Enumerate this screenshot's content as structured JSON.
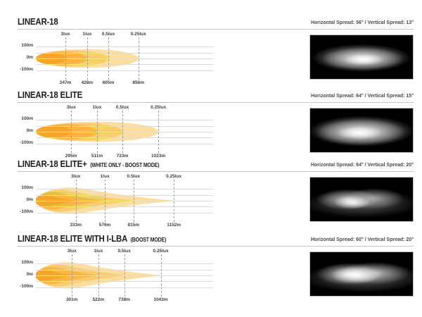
{
  "page": {
    "background": "#ffffff"
  },
  "style": {
    "beam_layer_colors": [
      "#FCDFA0",
      "#FACC6F",
      "#F7B742",
      "#F5A62B"
    ],
    "grid_color": "#dcdcdc",
    "dash_line_color": "#9b9b9b",
    "axis_text_color": "#3d3d3d",
    "title_color": "#1d1d1d",
    "spread_text_color": "#4a4a4a",
    "rule_color": "#c4c4c4",
    "photo_background": "#000000"
  },
  "sections": [
    {
      "title": "LINEAR-18",
      "subtitle": "",
      "spread_label": "Horizontal Spread: 56° / Vertical Spread: 13°"
    },
    {
      "title": "LINEAR-18 ELITE",
      "subtitle": "",
      "spread_label": "Horizontal Spread: 64° / Vertical Spread: 15°"
    },
    {
      "title": "LINEAR-18 ELITE+",
      "subtitle": "(WHITE ONLY - BOOST MODE)",
      "spread_label": "Horizontal Spread: 64° / Vertical Spread: 20°"
    },
    {
      "title": "LINEAR-18 ELITE WITH I-LBA",
      "subtitle": "(BOOST MODE)",
      "spread_label": "Horizontal Spread: 60° / Vertical Spread: 20°"
    }
  ],
  "chart_data": [
    {
      "type": "area",
      "title": "LINEAR-18 beam pattern",
      "lux_levels": [
        "3lux",
        "1lux",
        "0.5lux",
        "0.25lux"
      ],
      "distances_m": [
        247,
        428,
        605,
        856
      ],
      "y_ticks": [
        "100m",
        "0m",
        "-100m"
      ],
      "xlim": [
        0,
        1480
      ],
      "ylim_m": [
        -165,
        165
      ],
      "grid": true,
      "horizontal_spread_deg": 56,
      "vertical_spread_deg": 13,
      "beam": {
        "shape": "ellipse",
        "half_heights_m": [
          78,
          68,
          58,
          48
        ],
        "start_half_height_m": 20
      },
      "photo_style": "single-ellipse-glow"
    },
    {
      "type": "area",
      "title": "LINEAR-18 ELITE beam pattern",
      "lux_levels": [
        "3lux",
        "1lux",
        "0.5lux",
        "0.25lux"
      ],
      "distances_m": [
        295,
        511,
        723,
        1023
      ],
      "y_ticks": [
        "100m",
        "0m",
        "-100m"
      ],
      "xlim": [
        0,
        1480
      ],
      "ylim_m": [
        -165,
        165
      ],
      "grid": true,
      "horizontal_spread_deg": 64,
      "vertical_spread_deg": 15,
      "beam": {
        "shape": "ellipse",
        "half_heights_m": [
          84,
          74,
          63,
          51
        ],
        "start_half_height_m": 20
      },
      "photo_style": "single-ellipse-glow"
    },
    {
      "type": "area",
      "title": "LINEAR-18 ELITE+ (WHITE ONLY - BOOST MODE) beam pattern",
      "lux_levels": [
        "3lux",
        "1lux",
        "0.5lux",
        "0.25lux"
      ],
      "distances_m": [
        333,
        576,
        815,
        1152
      ],
      "y_ticks": [
        "100m",
        "0m",
        "-100m"
      ],
      "xlim": [
        0,
        1480
      ],
      "ylim_m": [
        -165,
        165
      ],
      "grid": true,
      "horizontal_spread_deg": 64,
      "vertical_spread_deg": 20,
      "beam": {
        "shape": "spear",
        "half_heights_m": [
          124,
          103,
          82,
          56
        ],
        "start_half_height_m": 20
      },
      "photo_style": "dual-lobe-glow"
    },
    {
      "type": "area",
      "title": "LINEAR-18 ELITE WITH I-LBA (BOOST MODE) beam pattern",
      "lux_levels": [
        "3lux",
        "1lux",
        "0.5lux",
        "0.25lux"
      ],
      "distances_m": [
        301,
        522,
        738,
        1043
      ],
      "y_ticks": [
        "100m",
        "0m",
        "-100m"
      ],
      "xlim": [
        0,
        1480
      ],
      "ylim_m": [
        -165,
        165
      ],
      "grid": true,
      "horizontal_spread_deg": 60,
      "vertical_spread_deg": 20,
      "beam": {
        "shape": "spear",
        "half_heights_m": [
          124,
          103,
          82,
          56
        ],
        "start_half_height_m": 20
      },
      "photo_style": "dual-lobe-glow"
    }
  ]
}
